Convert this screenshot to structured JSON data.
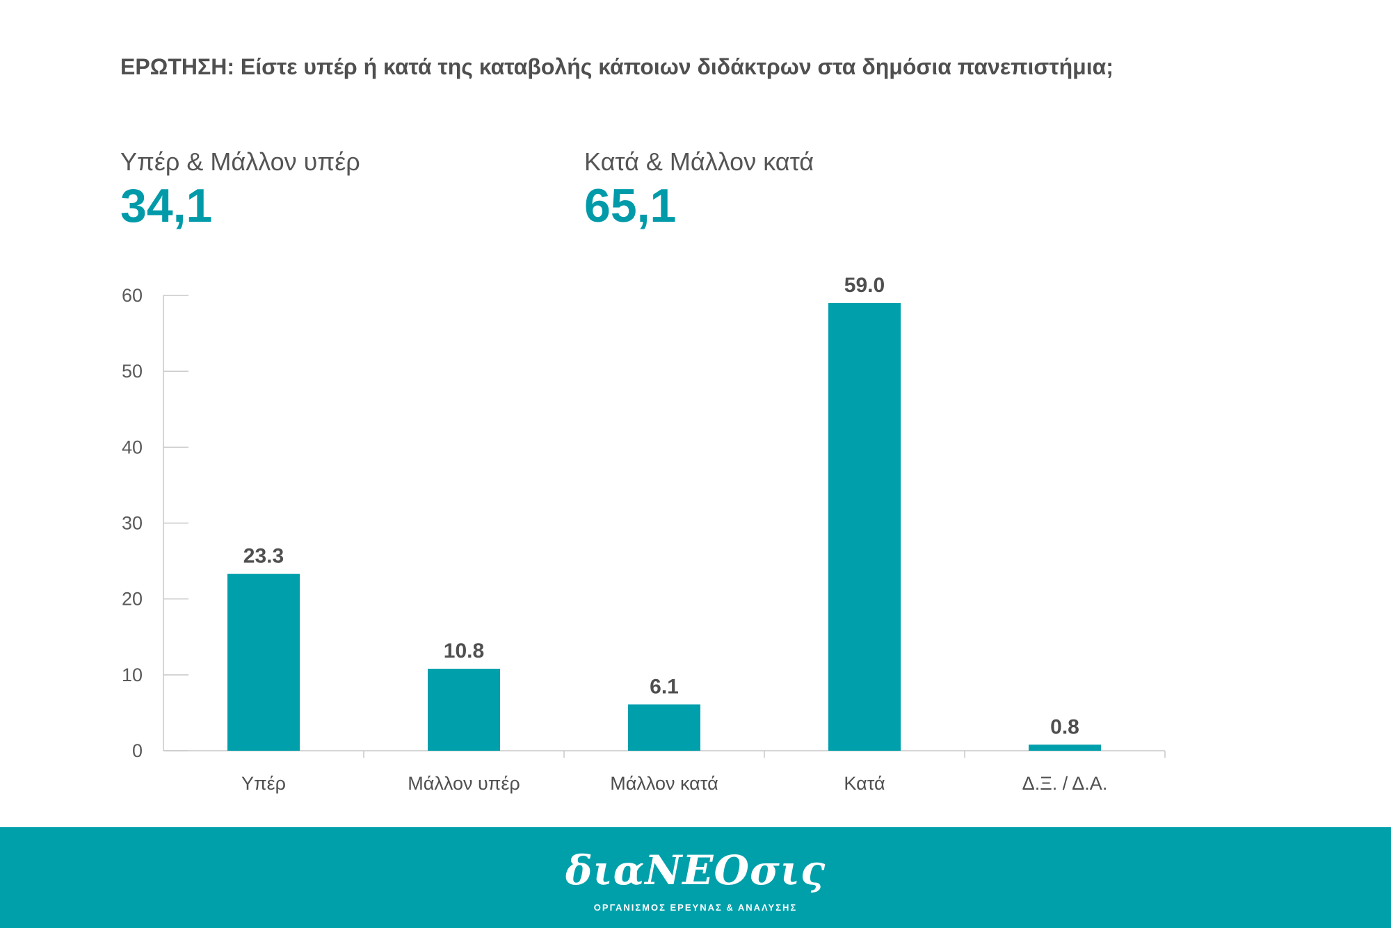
{
  "question": "ΕΡΩΤΗΣΗ: Είστε υπέρ ή κατά της καταβολής κάποιων διδάκτρων στα δημόσια πανεπιστήμια;",
  "summary": {
    "left": {
      "label": "Υπέρ & Μάλλον υπέρ",
      "value": "34,1"
    },
    "right": {
      "label": "Κατά & Μάλλον κατά",
      "value": "65,1"
    }
  },
  "chart_data": {
    "type": "bar",
    "title": "",
    "xlabel": "",
    "ylabel": "",
    "categories": [
      "Υπέρ",
      "Μάλλον υπέρ",
      "Μάλλον κατά",
      "Κατά",
      "Δ.Ξ. / Δ.Α."
    ],
    "values": [
      23.3,
      10.8,
      6.1,
      59.0,
      0.8
    ],
    "value_labels": [
      "23.3",
      "10.8",
      "6.1",
      "59.0",
      "0.8"
    ],
    "ylim": [
      0,
      60
    ],
    "yticks": [
      0,
      10,
      20,
      30,
      40,
      50,
      60
    ],
    "grid": false,
    "bar_color": "#009fac"
  },
  "footer": {
    "logo": "διαΝΕΟσις",
    "tagline": "ΟΡΓΑΝΙΣΜΟΣ ΕΡΕΥΝΑΣ & ΑΝΑΛΥΣΗΣ",
    "background": "#00a0ab"
  }
}
